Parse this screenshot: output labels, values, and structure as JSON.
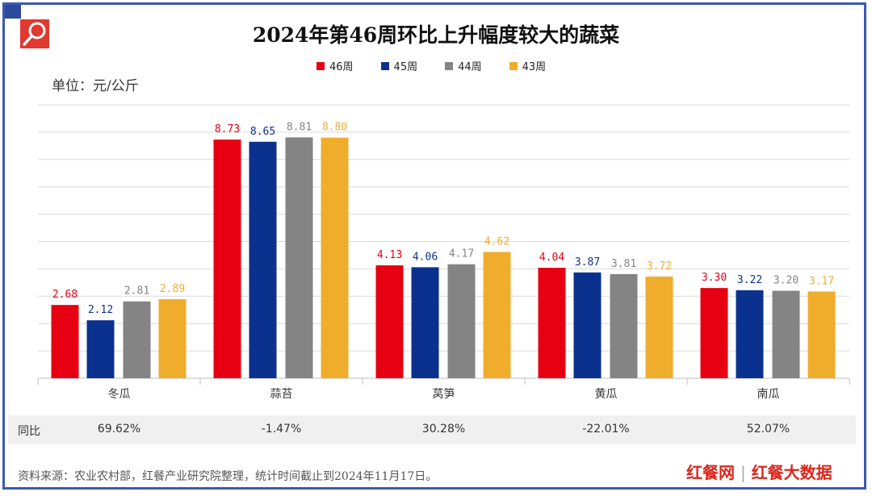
{
  "title": "2024年第46周环比上升幅度较大的蔬菜",
  "unit_label": "单位：元/公斤",
  "brand": {
    "name1": "红餐网",
    "name2": "红餐大数据"
  },
  "source": "资料来源：农业农村部，红餐产业研究院整理，统计时间截止到2024年11月17日。",
  "yoy": {
    "label": "同比",
    "values": [
      "69.62%",
      "-1.47%",
      "30.28%",
      "-22.01%",
      "52.07%"
    ]
  },
  "chart_data": {
    "type": "bar",
    "title": "2024年第46周环比上升幅度较大的蔬菜",
    "ylabel": "单位：元/公斤",
    "ylim": [
      0,
      10
    ],
    "grid": true,
    "legend_position": "top",
    "categories": [
      "冬瓜",
      "蒜苔",
      "莴笋",
      "黄瓜",
      "南瓜"
    ],
    "series": [
      {
        "name": "46周",
        "color": "#e60012",
        "values": [
          2.68,
          8.73,
          4.13,
          4.04,
          3.3
        ]
      },
      {
        "name": "45周",
        "color": "#0b318f",
        "values": [
          2.12,
          8.65,
          4.06,
          3.87,
          3.22
        ]
      },
      {
        "name": "44周",
        "color": "#848484",
        "values": [
          2.81,
          8.81,
          4.17,
          3.81,
          3.2
        ]
      },
      {
        "name": "43周",
        "color": "#f0ad2c",
        "values": [
          2.89,
          8.8,
          4.62,
          3.72,
          3.17
        ]
      }
    ]
  }
}
